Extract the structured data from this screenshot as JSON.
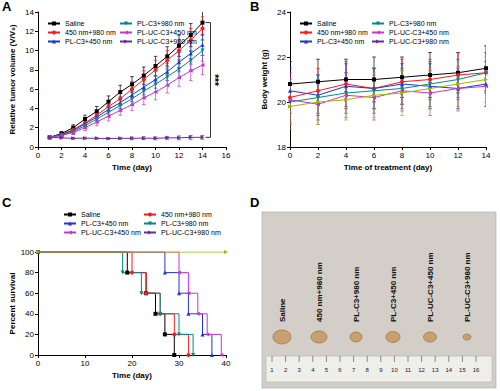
{
  "chart_data": [
    {
      "title": "A",
      "type": "line",
      "x_label": "Time (day)",
      "y_label": "Relative tumor volume (V/V₀)",
      "x": [
        1,
        2,
        3,
        4,
        5,
        6,
        7,
        8,
        9,
        10,
        11,
        12,
        13,
        14
      ],
      "xlim": [
        0,
        16
      ],
      "xticks": [
        0,
        2,
        4,
        6,
        8,
        10,
        12,
        14,
        16
      ],
      "ylim": [
        0,
        14
      ],
      "yticks": [
        0,
        2,
        4,
        6,
        8,
        10,
        12,
        14
      ],
      "grid": false,
      "legend": "upper left",
      "annotation": "***",
      "series": [
        {
          "name": "Saline",
          "color": "#000000",
          "marker": "square",
          "values": [
            1.0,
            1.4,
            2.0,
            2.9,
            3.7,
            4.7,
            5.7,
            6.5,
            7.4,
            8.4,
            9.4,
            10.5,
            11.6,
            12.9
          ],
          "errors": [
            0.05,
            0.2,
            0.3,
            0.4,
            0.5,
            0.6,
            0.7,
            0.8,
            0.9,
            1.0,
            1.0,
            1.1,
            1.2,
            1.3
          ]
        },
        {
          "name": "450 nm+980 nm",
          "color": "#ff1a1a",
          "marker": "circle",
          "values": [
            1.0,
            1.3,
            1.8,
            2.5,
            3.3,
            4.2,
            5.0,
            6.0,
            7.0,
            8.0,
            9.0,
            10.0,
            11.1,
            12.3
          ],
          "errors": [
            0.05,
            0.2,
            0.3,
            0.4,
            0.5,
            0.6,
            0.7,
            0.8,
            0.9,
            1.0,
            1.0,
            1.1,
            1.2,
            1.2
          ]
        },
        {
          "name": "PL-C3+450 nm",
          "color": "#2233dd",
          "marker": "triangle-up",
          "values": [
            1.0,
            1.3,
            1.7,
            2.4,
            3.1,
            3.9,
            4.6,
            5.4,
            6.2,
            7.0,
            7.8,
            8.8,
            9.7,
            10.6
          ],
          "errors": [
            0.05,
            0.2,
            0.3,
            0.3,
            0.4,
            0.5,
            0.6,
            0.7,
            0.8,
            0.9,
            0.9,
            1.0,
            1.1,
            1.1
          ]
        },
        {
          "name": "PL-C3+980 nm",
          "color": "#008b8b",
          "marker": "triangle-down",
          "values": [
            1.0,
            1.2,
            1.6,
            2.2,
            2.9,
            3.6,
            4.3,
            5.0,
            5.8,
            6.5,
            7.3,
            8.1,
            9.0,
            10.0
          ],
          "errors": [
            0.05,
            0.2,
            0.3,
            0.3,
            0.4,
            0.5,
            0.6,
            0.7,
            0.7,
            0.8,
            0.9,
            1.0,
            1.0,
            1.1
          ]
        },
        {
          "name": "PL-UC-C3+450 nm",
          "color": "#cc33cc",
          "marker": "triangle-left",
          "values": [
            1.0,
            1.2,
            1.5,
            2.0,
            2.6,
            3.2,
            3.8,
            4.4,
            5.1,
            5.7,
            6.4,
            7.2,
            7.9,
            8.5
          ],
          "errors": [
            0.05,
            0.2,
            0.2,
            0.3,
            0.4,
            0.5,
            0.5,
            0.6,
            0.7,
            0.8,
            0.8,
            0.9,
            1.0,
            1.0
          ]
        },
        {
          "name": "PL-UC-C3+980 nm",
          "color": "#6a2c9a",
          "marker": "triangle-right",
          "values": [
            1.0,
            0.95,
            0.9,
            0.92,
            0.9,
            0.88,
            0.9,
            0.9,
            0.92,
            0.9,
            0.95,
            0.95,
            1.0,
            1.0
          ],
          "errors": [
            0.05,
            0.1,
            0.1,
            0.1,
            0.1,
            0.1,
            0.1,
            0.15,
            0.15,
            0.15,
            0.15,
            0.2,
            0.2,
            0.2
          ]
        }
      ]
    },
    {
      "title": "B",
      "type": "line",
      "x_label": "Time of treatment (day)",
      "y_label": "Body weight (g)",
      "x": [
        0,
        2,
        4,
        6,
        8,
        10,
        12,
        14
      ],
      "xlim": [
        0,
        14
      ],
      "xticks": [
        0,
        2,
        4,
        6,
        8,
        10,
        12,
        14
      ],
      "ylim": [
        18,
        24
      ],
      "yticks": [
        18,
        20,
        22,
        24
      ],
      "grid": false,
      "legend": "upper left",
      "series": [
        {
          "name": "Saline",
          "color": "#000000",
          "marker": "square",
          "values": [
            20.8,
            20.9,
            21.0,
            21.0,
            21.1,
            21.2,
            21.3,
            21.5
          ],
          "errors": [
            1.0,
            1.0,
            0.9,
            1.0,
            0.9,
            1.0,
            0.9,
            1.0
          ]
        },
        {
          "name": "450 nm+980 nm",
          "color": "#ff1a1a",
          "marker": "circle",
          "values": [
            20.2,
            20.5,
            20.8,
            20.6,
            20.9,
            21.0,
            21.2,
            21.3
          ],
          "errors": [
            1.1,
            1.0,
            1.0,
            0.9,
            1.0,
            0.9,
            1.0,
            0.9
          ]
        },
        {
          "name": "PL-C3+450 nm",
          "color": "#2233dd",
          "marker": "triangle-up",
          "values": [
            20.5,
            20.3,
            20.7,
            20.6,
            20.8,
            20.7,
            20.6,
            20.8
          ],
          "errors": [
            1.0,
            0.9,
            1.0,
            0.9,
            0.9,
            1.0,
            0.9,
            1.0
          ]
        },
        {
          "name": "PL-C3+980 nm",
          "color": "#008b8b",
          "marker": "triangle-down",
          "values": [
            20.0,
            20.2,
            20.4,
            20.5,
            20.6,
            20.8,
            21.0,
            21.3
          ],
          "errors": [
            1.0,
            1.0,
            0.9,
            1.0,
            0.9,
            1.0,
            0.9,
            0.9
          ]
        },
        {
          "name": "PL-UC-C3+450 nm",
          "color": "#cc33cc",
          "marker": "triangle-left",
          "values": [
            20.1,
            19.9,
            20.3,
            20.2,
            20.5,
            20.4,
            20.6,
            20.7
          ],
          "errors": [
            1.0,
            0.9,
            1.0,
            1.0,
            0.9,
            1.0,
            1.0,
            0.9
          ]
        },
        {
          "name": "PL-UC-C3+980 nm",
          "color": "#a8b400",
          "marker": "triangle-right",
          "values": [
            19.8,
            20.0,
            20.1,
            20.3,
            20.4,
            20.6,
            20.8,
            21.0
          ],
          "errors": [
            1.0,
            1.0,
            0.9,
            1.0,
            1.0,
            0.9,
            1.0,
            1.0
          ]
        }
      ]
    },
    {
      "title": "C",
      "type": "line",
      "line_style": "step",
      "x_label": "Time (day)",
      "y_label": "Percent survival",
      "xlim": [
        0,
        40
      ],
      "xticks": [
        0,
        10,
        20,
        30,
        40
      ],
      "ylim": [
        0,
        100
      ],
      "yticks": [
        0,
        20,
        40,
        60,
        80,
        100
      ],
      "grid": false,
      "legend": "top",
      "series": [
        {
          "name": "Saline",
          "color": "#000000",
          "marker": "square",
          "x": [
            0,
            19,
            23,
            25,
            27,
            29
          ],
          "values": [
            100,
            80,
            60,
            40,
            20,
            0
          ]
        },
        {
          "name": "450 nm+980 nm",
          "color": "#ff1a1a",
          "marker": "circle",
          "x": [
            0,
            20,
            23,
            26,
            29,
            32
          ],
          "values": [
            100,
            80,
            60,
            40,
            20,
            0
          ]
        },
        {
          "name": "PL-C3+450 nm",
          "color": "#2233dd",
          "marker": "triangle-up",
          "x": [
            0,
            27,
            30,
            32,
            35,
            37
          ],
          "values": [
            100,
            80,
            60,
            40,
            20,
            0
          ]
        },
        {
          "name": "PL-C3+980 nm",
          "color": "#008b8b",
          "marker": "triangle-down",
          "x": [
            0,
            18,
            22,
            26,
            30,
            33
          ],
          "values": [
            100,
            80,
            60,
            40,
            20,
            0
          ]
        },
        {
          "name": "PL-UC-C3+450 nm",
          "color": "#cc33cc",
          "marker": "triangle-left",
          "x": [
            0,
            30,
            32,
            34,
            36,
            39
          ],
          "values": [
            100,
            80,
            60,
            40,
            20,
            0
          ]
        },
        {
          "name": "PL-UC-C3+980 nm",
          "color": "#a8b400",
          "marker": "triangle-right",
          "x": [
            0,
            40
          ],
          "values": [
            100,
            100
          ]
        }
      ]
    }
  ],
  "photo": {
    "title": "D",
    "labels": [
      "Saline",
      "450 nm+980 nm",
      "PL-C3+980 nm",
      "PL-C3+450 nm",
      "PL-UC-C3+450 nm",
      "PL-UC-C3+980 nm"
    ],
    "ruler_ticks": [
      1,
      2,
      3,
      4,
      5,
      6,
      7,
      8,
      9,
      10,
      11,
      12,
      13,
      14,
      15,
      16
    ]
  }
}
